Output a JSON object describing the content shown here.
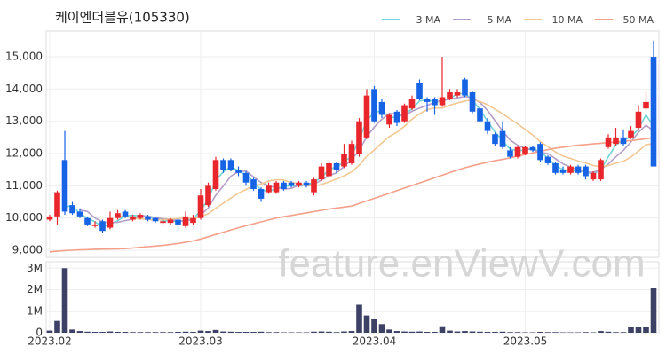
{
  "chart_data": {
    "type": "candlestick",
    "title": "케이엔더블유(105330)",
    "watermark": "feature.enViewV.com",
    "xticks": [
      {
        "value": 0,
        "label": "2023.02"
      },
      {
        "value": 20,
        "label": "2023.03"
      },
      {
        "value": 43,
        "label": "2023.04"
      },
      {
        "value": 63,
        "label": "2023.05"
      }
    ],
    "ylim": [
      8780,
      15800
    ],
    "yticks": [
      {
        "value": 9000,
        "label": "9,000"
      },
      {
        "value": 10000,
        "label": "10,000"
      },
      {
        "value": 11000,
        "label": "11,000"
      },
      {
        "value": 12000,
        "label": "12,000"
      },
      {
        "value": 13000,
        "label": "13,000"
      },
      {
        "value": 14000,
        "label": "14,000"
      },
      {
        "value": 15000,
        "label": "15,000"
      }
    ],
    "up_color": "#e8262c",
    "down_color": "#1763e6",
    "grid": true,
    "candles": {
      "open": [
        9950,
        10050,
        11800,
        10400,
        10200,
        10000,
        9750,
        9900,
        9700,
        10000,
        10200,
        9950,
        10000,
        10050,
        10000,
        9850,
        9850,
        9950,
        9750,
        9850,
        10000,
        10400,
        10900,
        11800,
        11800,
        11500,
        11400,
        11200,
        10900,
        10800,
        10800,
        11100,
        11100,
        11000,
        11100,
        10800,
        11200,
        11300,
        11700,
        11600,
        11700,
        12000,
        12500,
        14000,
        13600,
        12900,
        13300,
        13000,
        13400,
        14200,
        13700,
        13700,
        13500,
        13700,
        13800,
        14300,
        13900,
        13400,
        13000,
        12600,
        12700,
        12100,
        11900,
        12000,
        12200,
        12300,
        11900,
        11700,
        11500,
        11400,
        11600,
        11600,
        11200,
        11200,
        12200,
        12300,
        12500,
        12500,
        12800,
        13400,
        15000
      ],
      "high": [
        10100,
        10850,
        12700,
        10500,
        10300,
        10050,
        9900,
        9950,
        10200,
        10250,
        10250,
        10100,
        10150,
        10100,
        10050,
        9950,
        10000,
        10000,
        10200,
        10100,
        10900,
        11100,
        11900,
        11850,
        11850,
        11600,
        11450,
        11250,
        10950,
        11100,
        11150,
        11150,
        11150,
        11150,
        11150,
        11250,
        11700,
        11800,
        11750,
        12300,
        12400,
        13100,
        14000,
        14100,
        13700,
        13250,
        13350,
        13550,
        13800,
        14300,
        13750,
        13750,
        15000,
        14000,
        14000,
        14350,
        13950,
        13450,
        13100,
        12650,
        13000,
        12200,
        12250,
        12250,
        12250,
        12350,
        11950,
        11750,
        11600,
        11650,
        11650,
        11650,
        11450,
        11850,
        12600,
        12800,
        12750,
        12850,
        13500,
        13900,
        15500
      ],
      "low": [
        9900,
        9800,
        10100,
        10100,
        10000,
        9750,
        9700,
        9550,
        9650,
        9950,
        10000,
        9900,
        9950,
        9900,
        9850,
        9800,
        9800,
        9600,
        9700,
        9800,
        9950,
        10350,
        10850,
        11400,
        11450,
        11300,
        11000,
        10850,
        10500,
        10750,
        10750,
        10850,
        10950,
        10950,
        10950,
        10700,
        11150,
        11250,
        11400,
        11550,
        11650,
        11900,
        12450,
        12950,
        13100,
        12800,
        12850,
        12950,
        13350,
        13650,
        13300,
        13200,
        13450,
        13650,
        13750,
        13750,
        13250,
        12950,
        12600,
        12250,
        12150,
        11850,
        11850,
        11950,
        12050,
        11750,
        11650,
        11350,
        11350,
        11350,
        11350,
        11200,
        11150,
        11150,
        12150,
        12250,
        12250,
        12450,
        12750,
        13350,
        11600
      ],
      "close": [
        10050,
        10800,
        10200,
        10150,
        10050,
        9800,
        9800,
        9600,
        10000,
        10150,
        10050,
        10050,
        10100,
        9950,
        9900,
        9900,
        9950,
        9800,
        10050,
        10000,
        10700,
        11000,
        11800,
        11500,
        11500,
        11400,
        11100,
        10900,
        10600,
        11000,
        11100,
        10900,
        11000,
        11100,
        11000,
        11200,
        11600,
        11700,
        11500,
        12000,
        12300,
        13000,
        13800,
        13000,
        13200,
        13200,
        12950,
        13500,
        13700,
        13700,
        13600,
        13500,
        13750,
        13900,
        13900,
        13800,
        13300,
        13000,
        12700,
        12300,
        12200,
        11900,
        12200,
        12200,
        12100,
        11800,
        11700,
        11400,
        11400,
        11600,
        11400,
        11300,
        11400,
        11800,
        12500,
        12500,
        12300,
        12700,
        13300,
        13600,
        11600
      ]
    },
    "series": [
      {
        "name": "3 MA",
        "color": "#72d4d6",
        "values": [
          null,
          null,
          10350,
          10380,
          10133,
          10000,
          9883,
          9733,
          9800,
          9917,
          10067,
          10083,
          10067,
          10033,
          9983,
          9917,
          9917,
          9883,
          9933,
          9950,
          10250,
          10567,
          11167,
          11433,
          11600,
          11467,
          11333,
          11133,
          10867,
          10833,
          10900,
          11000,
          11000,
          11000,
          11033,
          11100,
          11267,
          11500,
          11600,
          11733,
          11933,
          12433,
          13033,
          13267,
          13333,
          13133,
          13117,
          13217,
          13383,
          13633,
          13667,
          13600,
          13617,
          13717,
          13850,
          13867,
          13667,
          13367,
          13000,
          12667,
          12400,
          12133,
          12100,
          12100,
          12167,
          12033,
          11867,
          11633,
          11500,
          11467,
          11467,
          11433,
          11367,
          11500,
          11900,
          12267,
          12433,
          12500,
          12767,
          13200,
          12833
        ]
      },
      {
        "name": "5 MA",
        "color": "#b39ec9",
        "values": [
          null,
          null,
          null,
          null,
          10250,
          10200,
          10000,
          9880,
          9850,
          9870,
          9920,
          9970,
          10070,
          10060,
          10010,
          9980,
          9960,
          9900,
          9920,
          9940,
          10100,
          10310,
          10710,
          11000,
          11300,
          11440,
          11460,
          11280,
          11100,
          11000,
          10940,
          10900,
          10920,
          11020,
          11020,
          11040,
          11180,
          11320,
          11400,
          11600,
          11820,
          12100,
          12520,
          12820,
          13060,
          13240,
          13230,
          13170,
          13310,
          13410,
          13490,
          13600,
          13650,
          13690,
          13730,
          13770,
          13730,
          13580,
          13340,
          13020,
          12700,
          12420,
          12260,
          12160,
          12120,
          12040,
          12000,
          11840,
          11680,
          11580,
          11500,
          11420,
          11420,
          11500,
          11680,
          11900,
          12100,
          12360,
          12660,
          12880,
          12700
        ]
      },
      {
        "name": "10 MA",
        "color": "#f3c792",
        "values": [
          null,
          null,
          null,
          null,
          null,
          null,
          null,
          null,
          null,
          10060,
          10060,
          9985,
          9975,
          9955,
          9940,
          9950,
          9965,
          9985,
          9990,
          9975,
          10040,
          10135,
          10305,
          10460,
          10620,
          10770,
          10885,
          10995,
          11050,
          11150,
          11190,
          11180,
          11100,
          11060,
          11010,
          10990,
          11040,
          11120,
          11210,
          11310,
          11430,
          11640,
          11920,
          12110,
          12330,
          12530,
          12665,
          12845,
          13065,
          13235,
          13365,
          13415,
          13410,
          13500,
          13570,
          13630,
          13665,
          13615,
          13515,
          13375,
          13235,
          13075,
          12920,
          12750,
          12570,
          12370,
          12210,
          12050,
          11920,
          11850,
          11770,
          11710,
          11630,
          11590,
          11630,
          11700,
          11760,
          11890,
          12080,
          12280,
          12300
        ]
      },
      {
        "name": "50 MA",
        "color": "#f4a08a",
        "values": [
          8950,
          8970,
          8990,
          9000,
          9010,
          9020,
          9030,
          9035,
          9040,
          9045,
          9050,
          9070,
          9090,
          9110,
          9130,
          9150,
          9180,
          9210,
          9250,
          9290,
          9350,
          9420,
          9490,
          9560,
          9630,
          9700,
          9760,
          9820,
          9880,
          9940,
          10000,
          10040,
          10080,
          10120,
          10160,
          10200,
          10240,
          10280,
          10310,
          10340,
          10370,
          10450,
          10530,
          10610,
          10690,
          10770,
          10850,
          10930,
          11010,
          11090,
          11170,
          11250,
          11330,
          11410,
          11490,
          11560,
          11620,
          11680,
          11730,
          11780,
          11820,
          11870,
          11920,
          11970,
          12020,
          12070,
          12120,
          12170,
          12200,
          12230,
          12260,
          12280,
          12300,
          12320,
          12340,
          12360,
          12380,
          12400,
          12430,
          12460,
          12500
        ]
      }
    ],
    "volume": {
      "color": "#3d4166",
      "ylim": [
        0,
        3300000
      ],
      "yticks": [
        {
          "value": 0,
          "label": "0"
        },
        {
          "value": 1000000,
          "label": "1M"
        },
        {
          "value": 2000000,
          "label": "2M"
        },
        {
          "value": 3000000,
          "label": "3M"
        }
      ],
      "values": [
        100000,
        550000,
        3000000,
        150000,
        80000,
        50000,
        40000,
        40000,
        60000,
        40000,
        40000,
        30000,
        30000,
        30000,
        30000,
        30000,
        30000,
        40000,
        50000,
        40000,
        100000,
        80000,
        130000,
        60000,
        50000,
        40000,
        40000,
        40000,
        50000,
        30000,
        30000,
        20000,
        20000,
        20000,
        20000,
        50000,
        60000,
        50000,
        30000,
        60000,
        80000,
        1300000,
        800000,
        650000,
        400000,
        150000,
        80000,
        60000,
        50000,
        60000,
        40000,
        40000,
        300000,
        100000,
        60000,
        80000,
        60000,
        50000,
        40000,
        40000,
        50000,
        30000,
        30000,
        20000,
        20000,
        40000,
        30000,
        30000,
        20000,
        20000,
        20000,
        30000,
        20000,
        80000,
        50000,
        30000,
        30000,
        250000,
        250000,
        250000,
        2100000
      ]
    }
  }
}
